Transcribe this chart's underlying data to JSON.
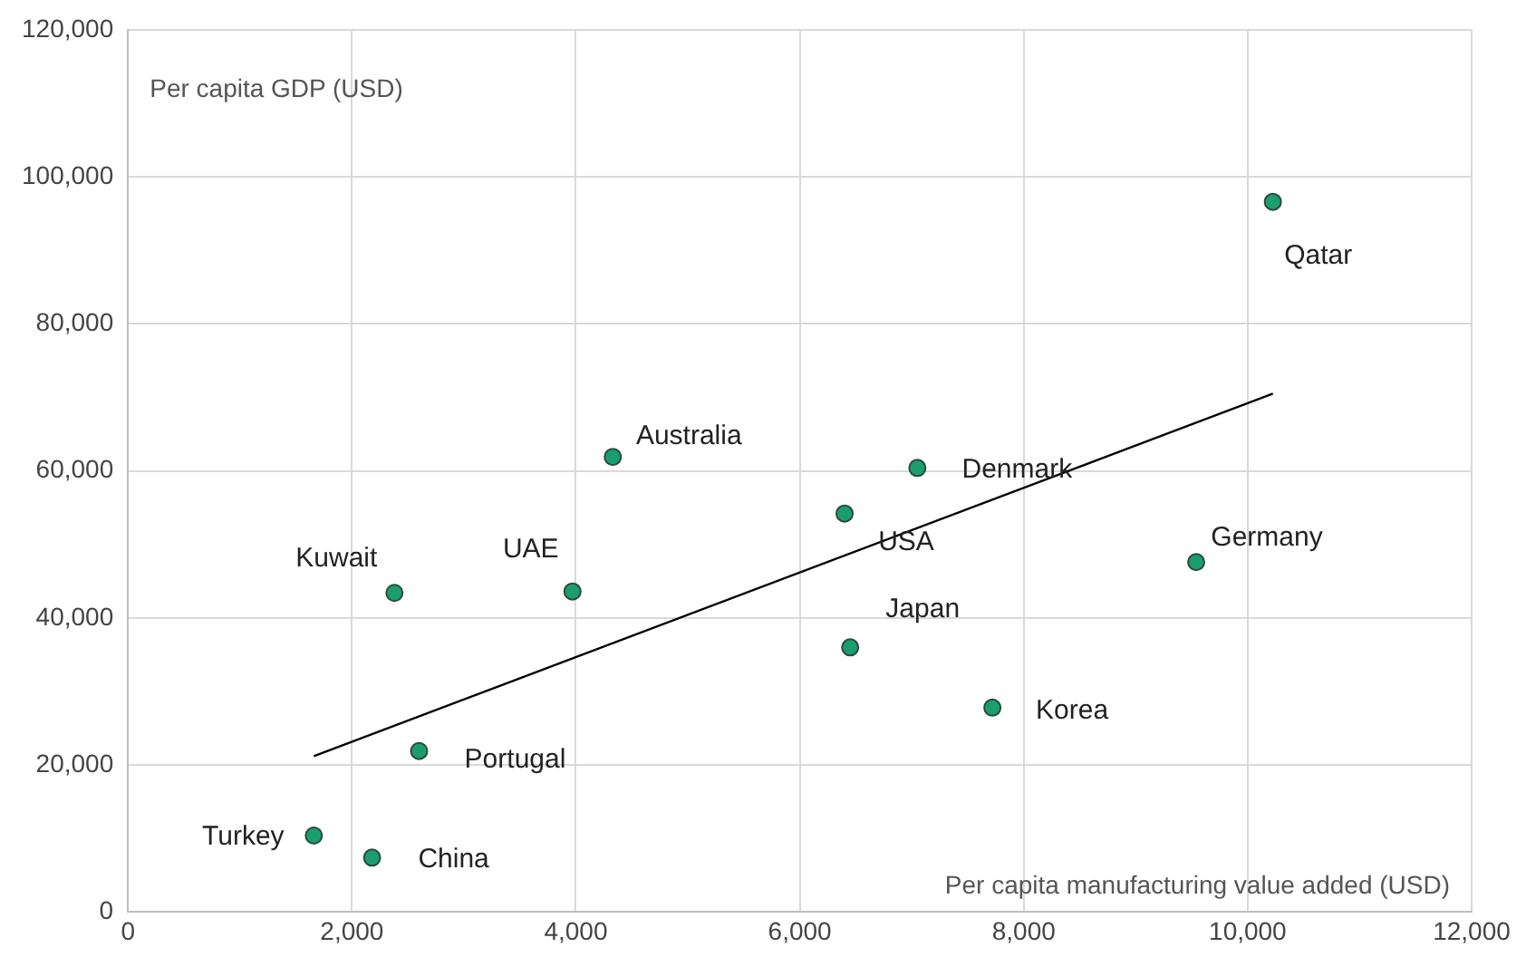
{
  "chart_data": {
    "type": "scatter",
    "xlabel": "Per capita manufacturing value added (USD)",
    "ylabel": "Per capita GDP (USD)",
    "xlim": [
      0,
      12000
    ],
    "xticks": [
      0,
      {
        "value": 2000,
        "label": "2,000"
      },
      {
        "value": 4000,
        "label": "4,000"
      },
      {
        "value": 6000,
        "label": "6,000"
      },
      {
        "value": 8000,
        "label": "8,000"
      },
      {
        "value": 10000,
        "label": "10,000"
      },
      {
        "value": 12000,
        "label": "12,000"
      }
    ],
    "ylim": [
      0,
      120000
    ],
    "yticks": [
      0,
      {
        "value": 20000,
        "label": "20,000"
      },
      {
        "value": 40000,
        "label": "40,000"
      },
      {
        "value": 60000,
        "label": "60,000"
      },
      {
        "value": 80000,
        "label": "80,000"
      },
      {
        "value": 100000,
        "label": "100,000"
      },
      {
        "value": 120000,
        "label": "120,000"
      }
    ],
    "grid": true,
    "legend": false,
    "marker": "circle",
    "series": [
      {
        "color": "#1a9e6e",
        "x": [
          10225,
          4330,
          7050,
          6400,
          9540,
          2380,
          3970,
          6450,
          7720,
          2600,
          1660,
          2180
        ],
        "values": [
          96600,
          61900,
          60400,
          54200,
          47600,
          43400,
          43600,
          36000,
          27800,
          21900,
          10400,
          7400
        ]
      },
      {
        "type": "line",
        "color": "#000000",
        "x": [
          1660,
          10225
        ],
        "values": [
          21200,
          70500
        ],
        "marker": "none",
        "line_style": "solid"
      }
    ],
    "annotations": [
      {
        "text": "Qatar",
        "x": 10225,
        "y": 96600
      },
      {
        "text": "Australia",
        "x": 4330,
        "y": 61900
      },
      {
        "text": "Denmark",
        "x": 7050,
        "y": 60400
      },
      {
        "text": "USA",
        "x": 6400,
        "y": 54200
      },
      {
        "text": "Germany",
        "x": 9540,
        "y": 47600
      },
      {
        "text": "Kuwait",
        "x": 2380,
        "y": 43400
      },
      {
        "text": "UAE",
        "x": 3970,
        "y": 43600
      },
      {
        "text": "Japan",
        "x": 6450,
        "y": 36000
      },
      {
        "text": "Korea",
        "x": 7720,
        "y": 27800
      },
      {
        "text": "Portugal",
        "x": 2600,
        "y": 21900
      },
      {
        "text": "Turkey",
        "x": 1660,
        "y": 10400
      },
      {
        "text": "China",
        "x": 2180,
        "y": 7400
      }
    ]
  }
}
